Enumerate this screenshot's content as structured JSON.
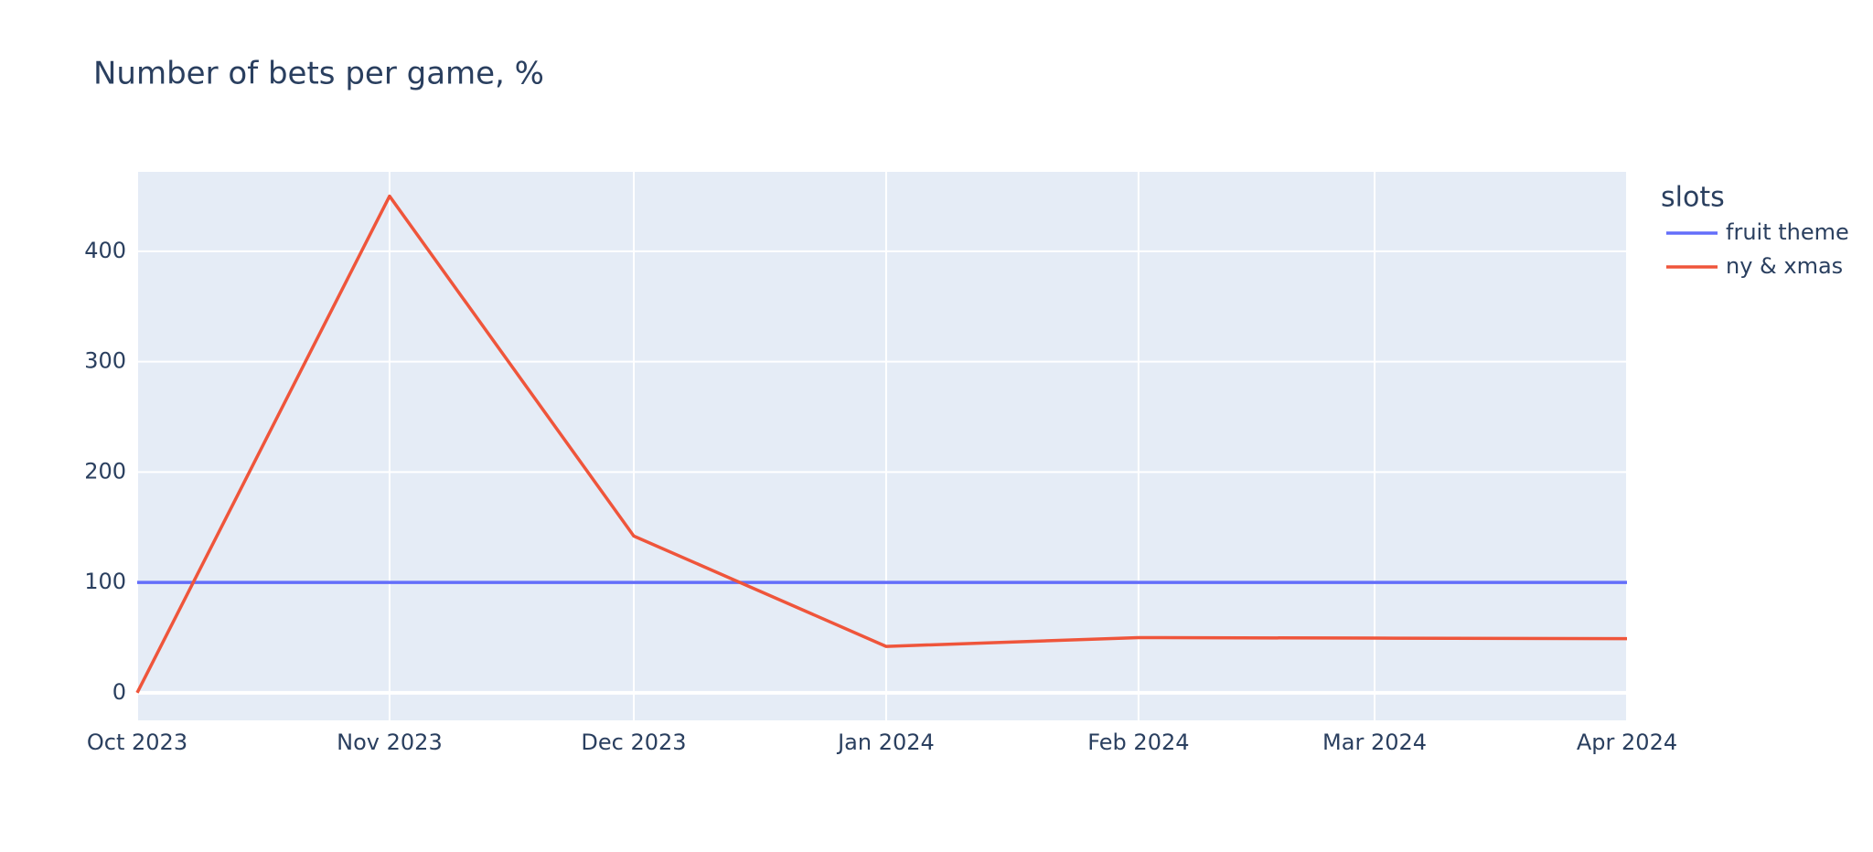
{
  "chart_data": {
    "type": "line",
    "title": "Number of bets per game, %",
    "legend_title": "slots",
    "legend_position": "right",
    "x": [
      "2023-10",
      "2023-11",
      "2023-12",
      "2024-01",
      "2024-02",
      "2024-03",
      "2024-04"
    ],
    "series": [
      {
        "name": "fruit theme",
        "color": "#636efa",
        "values": [
          100,
          100,
          100,
          100,
          100,
          100,
          100
        ]
      },
      {
        "name": "ny & xmas",
        "color": "#EF553B",
        "values": [
          0,
          450,
          142,
          42,
          50,
          49.5,
          49
        ]
      }
    ],
    "xlim": [
      "2023-10",
      "2024-04"
    ],
    "xticks": [
      {
        "value": "2023-10",
        "label": "Oct 2023"
      },
      {
        "value": "2023-11",
        "label": "Nov 2023"
      },
      {
        "value": "2023-12",
        "label": "Dec 2023"
      },
      {
        "value": "2024-01",
        "label": "Jan 2024"
      },
      {
        "value": "2024-02",
        "label": "Feb 2024"
      },
      {
        "value": "2024-03",
        "label": "Mar 2024"
      },
      {
        "value": "2024-04",
        "label": "Apr 2024"
      }
    ],
    "ylim": [
      -25,
      472
    ],
    "yticks": [
      0,
      100,
      200,
      300,
      400
    ],
    "grid": true
  }
}
